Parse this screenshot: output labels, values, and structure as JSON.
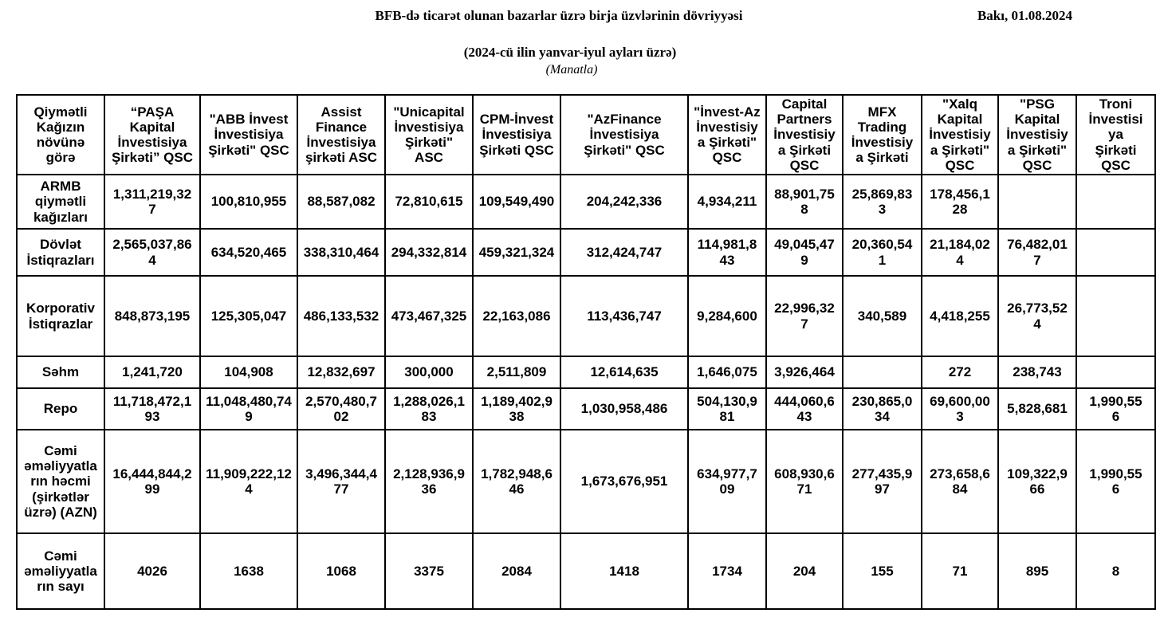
{
  "header": {
    "title": "BFB-də ticarət olunan bazarlar üzrə birja üzvlərinin dövriyyəsi",
    "date": "Bakı, 01.08.2024",
    "subtitle": "(2024-cü ilin yanvar-iyul ayları üzrə)",
    "unit_note": "(Manatla)"
  },
  "table": {
    "corner_header": "Qiymətli Kağızın növünə görə",
    "columns": [
      "“PAŞA Kapital İnvestisiya Şirkəti” QSC",
      "\"ABB İnvest İnvestisiya Şirkəti\" QSC",
      "Assist Finance İnvestisiya şirkəti ASC",
      "\"Unicapital İnvestisiya Şirkəti\" ASC",
      "CPM-İnvest İnvestisiya Şirkəti QSC",
      "\"AzFinance İnvestisiya Şirkəti\" QSC",
      "\"İnvest-Az İnvestisiya Şirkəti\" QSC",
      "Capital Partners İnvestisiya Şirkəti QSC",
      "MFX Trading İnvestisiya Şirkəti",
      "\"Xalq Kapital İnvestisiya Şirkəti\" QSC",
      "\"PSG Kapital İnvestisiya Şirkəti\" QSC",
      "Troni İnvestisiya Şirkəti QSC"
    ],
    "rows": [
      {
        "label": "ARMB qiymətli kağızları",
        "values": [
          "1,311,219,327",
          "100,810,955",
          "88,587,082",
          "72,810,615",
          "109,549,490",
          "204,242,336",
          "4,934,211",
          "88,901,758",
          "25,869,833",
          "178,456,128",
          "",
          ""
        ]
      },
      {
        "label": "Dövlət İstiqrazları",
        "values": [
          "2,565,037,864",
          "634,520,465",
          "338,310,464",
          "294,332,814",
          "459,321,324",
          "312,424,747",
          "114,981,843",
          "49,045,479",
          "20,360,541",
          "21,184,024",
          "76,482,017",
          ""
        ]
      },
      {
        "label": "Korporativ İstiqrazlar",
        "values": [
          "848,873,195",
          "125,305,047",
          "486,133,532",
          "473,467,325",
          "22,163,086",
          "113,436,747",
          "9,284,600",
          "22,996,327",
          "340,589",
          "4,418,255",
          "26,773,524",
          ""
        ]
      },
      {
        "label": "Səhm",
        "values": [
          "1,241,720",
          "104,908",
          "12,832,697",
          "300,000",
          "2,511,809",
          "12,614,635",
          "1,646,075",
          "3,926,464",
          "",
          "272",
          "238,743",
          ""
        ]
      },
      {
        "label": "Repo",
        "values": [
          "11,718,472,193",
          "11,048,480,749",
          "2,570,480,702",
          "1,288,026,183",
          "1,189,402,938",
          "1,030,958,486",
          "504,130,981",
          "444,060,643",
          "230,865,034",
          "69,600,003",
          "5,828,681",
          "1,990,556"
        ]
      },
      {
        "label": "Cəmi əməliyyatların həcmi (şirkətlər üzrə) (AZN)",
        "values": [
          "16,444,844,299",
          "11,909,222,124",
          "3,496,344,477",
          "2,128,936,936",
          "1,782,948,646",
          "1,673,676,951",
          "634,977,709",
          "608,930,671",
          "277,435,997",
          "273,658,684",
          "109,322,966",
          "1,990,556"
        ]
      },
      {
        "label": "Cəmi əməliyyatların sayı",
        "values": [
          "4026",
          "1638",
          "1068",
          "3375",
          "2084",
          "1418",
          "1734",
          "204",
          "155",
          "71",
          "895",
          "8"
        ]
      }
    ]
  }
}
